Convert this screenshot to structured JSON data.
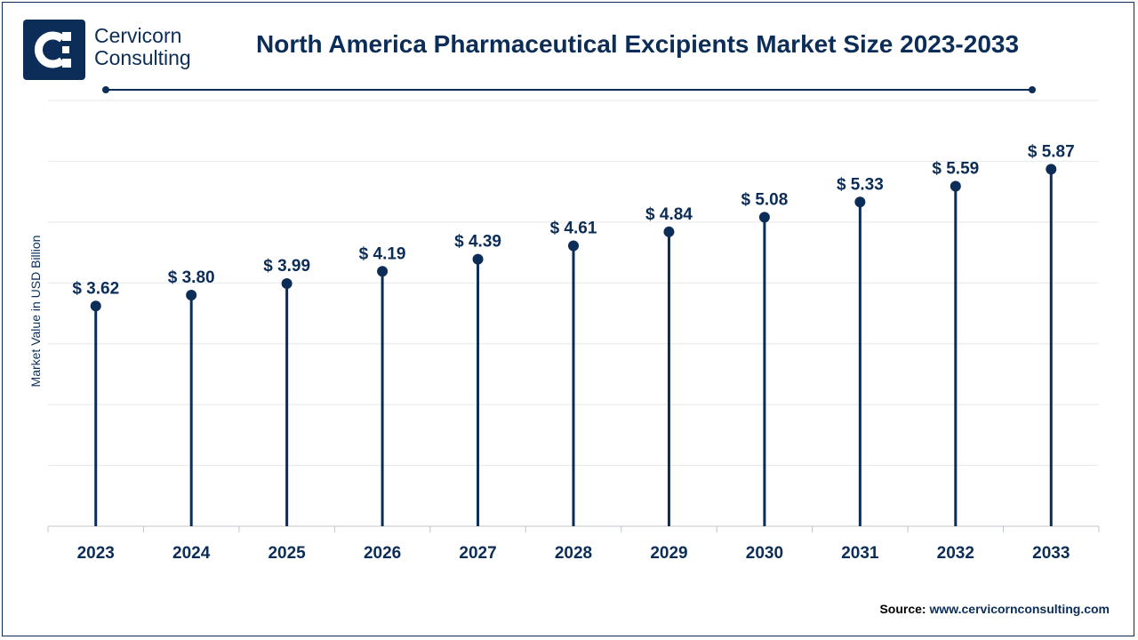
{
  "brand": {
    "line1": "Cervicorn",
    "line2": "Consulting",
    "color": "#0b2d57"
  },
  "chart_data": {
    "type": "lollipop",
    "title": "North America Pharmaceutical Excipients Market Size 2023-2033",
    "ylabel": "Market Value in USD Billion",
    "xlabel": "",
    "categories": [
      "2023",
      "2024",
      "2025",
      "2026",
      "2027",
      "2028",
      "2029",
      "2030",
      "2031",
      "2032",
      "2033"
    ],
    "values": [
      3.62,
      3.8,
      3.99,
      4.19,
      4.39,
      4.61,
      4.84,
      5.08,
      5.33,
      5.59,
      5.87
    ],
    "data_labels": [
      "$ 3.62",
      "$ 3.80",
      "$ 3.99",
      "$ 4.19",
      "$ 4.39",
      "$ 4.61",
      "$ 4.84",
      "$ 5.08",
      "$ 5.33",
      "$ 5.59",
      "$ 5.87"
    ],
    "ylim": [
      0,
      7
    ],
    "grid": true,
    "legend": "none",
    "color": "#0b2d57"
  },
  "source": {
    "label": "Source:",
    "url": "www.cervicornconsulting.com"
  }
}
